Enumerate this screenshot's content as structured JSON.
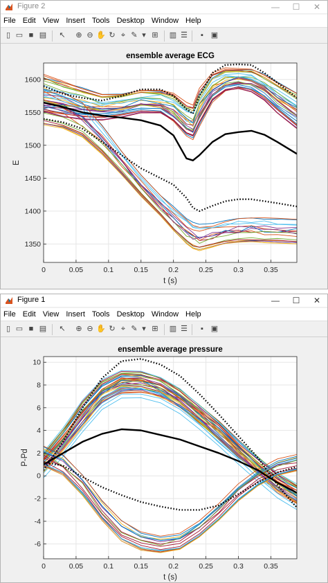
{
  "windows": [
    {
      "id": "win2",
      "title": "Figure 2",
      "menu": [
        "File",
        "Edit",
        "View",
        "Insert",
        "Tools",
        "Desktop",
        "Window",
        "Help"
      ],
      "window_buttons": [
        "—",
        "☐",
        "✕"
      ]
    },
    {
      "id": "win1",
      "title": "Figure 1",
      "menu": [
        "File",
        "Edit",
        "View",
        "Insert",
        "Tools",
        "Desktop",
        "Window",
        "Help"
      ],
      "window_buttons": [
        "—",
        "☐",
        "✕"
      ]
    }
  ],
  "toolbar_icons": [
    "new-figure-icon",
    "open-file-icon",
    "save-icon",
    "print-icon",
    "edit-plot-icon",
    "zoom-in-icon",
    "zoom-out-icon",
    "pan-icon",
    "rotate-3d-icon",
    "data-cursor-icon",
    "brush-icon",
    "brush-dropdown-icon",
    "link-plot-icon",
    "insert-colorbar-icon",
    "insert-legend-icon",
    "hide-plot-tools-icon",
    "show-plot-tools-icon"
  ],
  "chart_data": [
    {
      "type": "line",
      "title": "ensemble average ECG",
      "xlabel": "t (s)",
      "ylabel": "E",
      "xlim": [
        0,
        0.39
      ],
      "ylim": [
        1322,
        1625
      ],
      "xticks": [
        "0",
        "0.05",
        "0.1",
        "0.15",
        "0.2",
        "0.25",
        "0.3",
        "0.35"
      ],
      "yticks": [
        "1350",
        "1400",
        "1450",
        "1500",
        "1550",
        "1600"
      ],
      "grid": true,
      "x": [
        0,
        0.03,
        0.06,
        0.09,
        0.12,
        0.15,
        0.18,
        0.2,
        0.22,
        0.23,
        0.24,
        0.26,
        0.28,
        0.3,
        0.32,
        0.34,
        0.36,
        0.39
      ],
      "series": [
        {
          "style": "mean",
          "values": [
            1565,
            1558,
            1550,
            1545,
            1542,
            1538,
            1530,
            1515,
            1480,
            1477,
            1485,
            1505,
            1517,
            1520,
            1522,
            1516,
            1505,
            1487
          ]
        },
        {
          "style": "bound",
          "values": [
            1590,
            1578,
            1572,
            1568,
            1575,
            1585,
            1585,
            1575,
            1555,
            1548,
            1575,
            1610,
            1622,
            1623,
            1622,
            1610,
            1595,
            1572
          ]
        },
        {
          "style": "bound",
          "values": [
            1540,
            1535,
            1525,
            1505,
            1485,
            1465,
            1450,
            1440,
            1420,
            1405,
            1400,
            1408,
            1415,
            1418,
            1418,
            1415,
            1412,
            1407
          ]
        }
      ],
      "ensemble": {
        "upper_group": {
          "count": 28,
          "base": [
            1580,
            1572,
            1565,
            1560,
            1562,
            1568,
            1567,
            1558,
            1540,
            1535,
            1558,
            1588,
            1600,
            1602,
            1600,
            1590,
            1575,
            1555
          ],
          "spread": [
            30,
            28,
            24,
            20,
            18,
            18,
            18,
            22,
            25,
            25,
            28,
            22,
            18,
            16,
            18,
            20,
            24,
            28
          ]
        },
        "lower_group": {
          "count": 18,
          "base": [
            1560,
            1555,
            1540,
            1510,
            1475,
            1440,
            1410,
            1390,
            1372,
            1365,
            1362,
            1365,
            1370,
            1372,
            1373,
            1372,
            1371,
            1370
          ],
          "spread": [
            30,
            30,
            28,
            24,
            20,
            18,
            18,
            20,
            22,
            22,
            22,
            20,
            20,
            20,
            20,
            20,
            20,
            20
          ]
        }
      }
    },
    {
      "type": "line",
      "title": "ensemble average pressure",
      "xlabel": "t (s)",
      "ylabel": "P-Pd",
      "xlim": [
        0,
        0.39
      ],
      "ylim": [
        -7.3,
        10.5
      ],
      "xticks": [
        "0",
        "0.05",
        "0.1",
        "0.15",
        "0.2",
        "0.25",
        "0.3",
        "0.35"
      ],
      "yticks": [
        "-6",
        "-4",
        "-2",
        "0",
        "2",
        "4",
        "6",
        "8",
        "10"
      ],
      "grid": true,
      "x": [
        0,
        0.03,
        0.06,
        0.09,
        0.12,
        0.15,
        0.18,
        0.21,
        0.24,
        0.27,
        0.3,
        0.33,
        0.36,
        0.39
      ],
      "series": [
        {
          "style": "mean",
          "values": [
            1.0,
            2.0,
            3.0,
            3.7,
            4.1,
            4.0,
            3.6,
            3.2,
            2.6,
            2.0,
            1.3,
            0.5,
            -0.6,
            -1.5
          ]
        },
        {
          "style": "bound",
          "values": [
            0.5,
            3.0,
            6.0,
            8.6,
            10.1,
            10.3,
            9.8,
            8.8,
            7.2,
            5.4,
            3.5,
            1.6,
            -0.8,
            -2.8
          ]
        },
        {
          "style": "bound",
          "values": [
            1.2,
            0.9,
            -0.1,
            -1.0,
            -1.7,
            -2.3,
            -2.7,
            -3.0,
            -3.0,
            -2.6,
            -1.6,
            -0.6,
            0.3,
            0.8
          ]
        }
      ],
      "ensemble": {
        "upper_group": {
          "count": 34,
          "base": [
            1.0,
            3.0,
            5.3,
            7.2,
            8.1,
            8.1,
            7.6,
            6.6,
            5.2,
            3.7,
            2.1,
            0.6,
            -0.8,
            -1.8
          ],
          "spread": [
            1.2,
            1.3,
            1.4,
            1.3,
            1.2,
            1.2,
            1.2,
            1.2,
            1.2,
            1.2,
            1.2,
            1.2,
            1.2,
            1.2
          ]
        },
        "lower_group": {
          "count": 16,
          "base": [
            1.8,
            1.0,
            -0.8,
            -3.0,
            -4.8,
            -5.7,
            -6.0,
            -5.7,
            -4.6,
            -3.1,
            -1.4,
            -0.1,
            0.8,
            1.2
          ],
          "spread": [
            1.0,
            1.0,
            1.0,
            1.0,
            1.0,
            0.9,
            0.8,
            0.8,
            0.8,
            0.8,
            0.8,
            0.8,
            0.8,
            0.8
          ]
        }
      }
    }
  ]
}
